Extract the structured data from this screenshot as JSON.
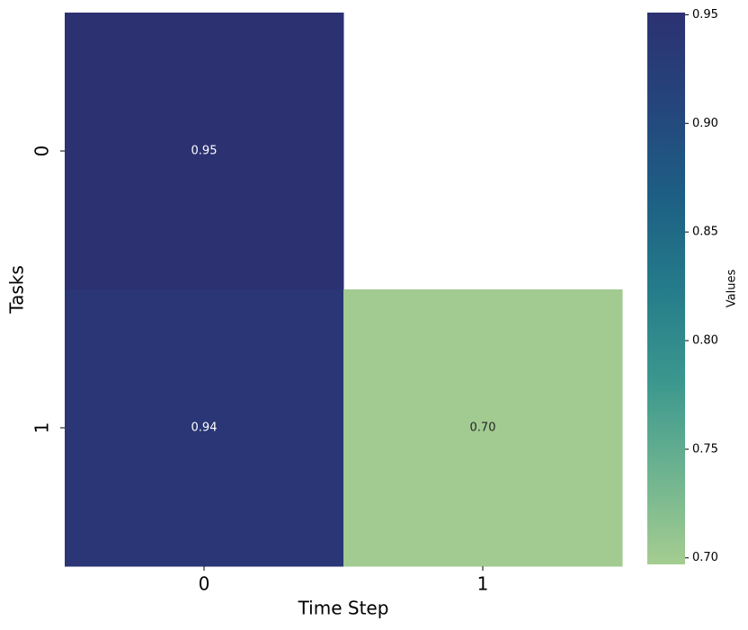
{
  "chart_data": {
    "type": "heatmap",
    "xlabel": "Time Step",
    "ylabel": "Tasks",
    "x_categories": [
      "0",
      "1"
    ],
    "y_categories": [
      "0",
      "1"
    ],
    "values": [
      [
        0.95,
        null
      ],
      [
        0.94,
        0.7
      ]
    ],
    "value_labels": [
      [
        "0.95",
        null
      ],
      [
        "0.94",
        "0.70"
      ]
    ],
    "colormap": [
      "#a5cd90",
      "#6db390",
      "#3a978e",
      "#257b8a",
      "#1d5f84",
      "#25457c",
      "#2c3172"
    ],
    "colorbar_label": "Values",
    "clim": [
      0.697,
      0.951
    ],
    "cticks": [
      {
        "value": 0.7,
        "label": "0.70"
      },
      {
        "value": 0.75,
        "label": "0.75"
      },
      {
        "value": 0.8,
        "label": "0.80"
      },
      {
        "value": 0.85,
        "label": "0.85"
      },
      {
        "value": 0.9,
        "label": "0.90"
      },
      {
        "value": 0.95,
        "label": "0.95"
      }
    ]
  }
}
